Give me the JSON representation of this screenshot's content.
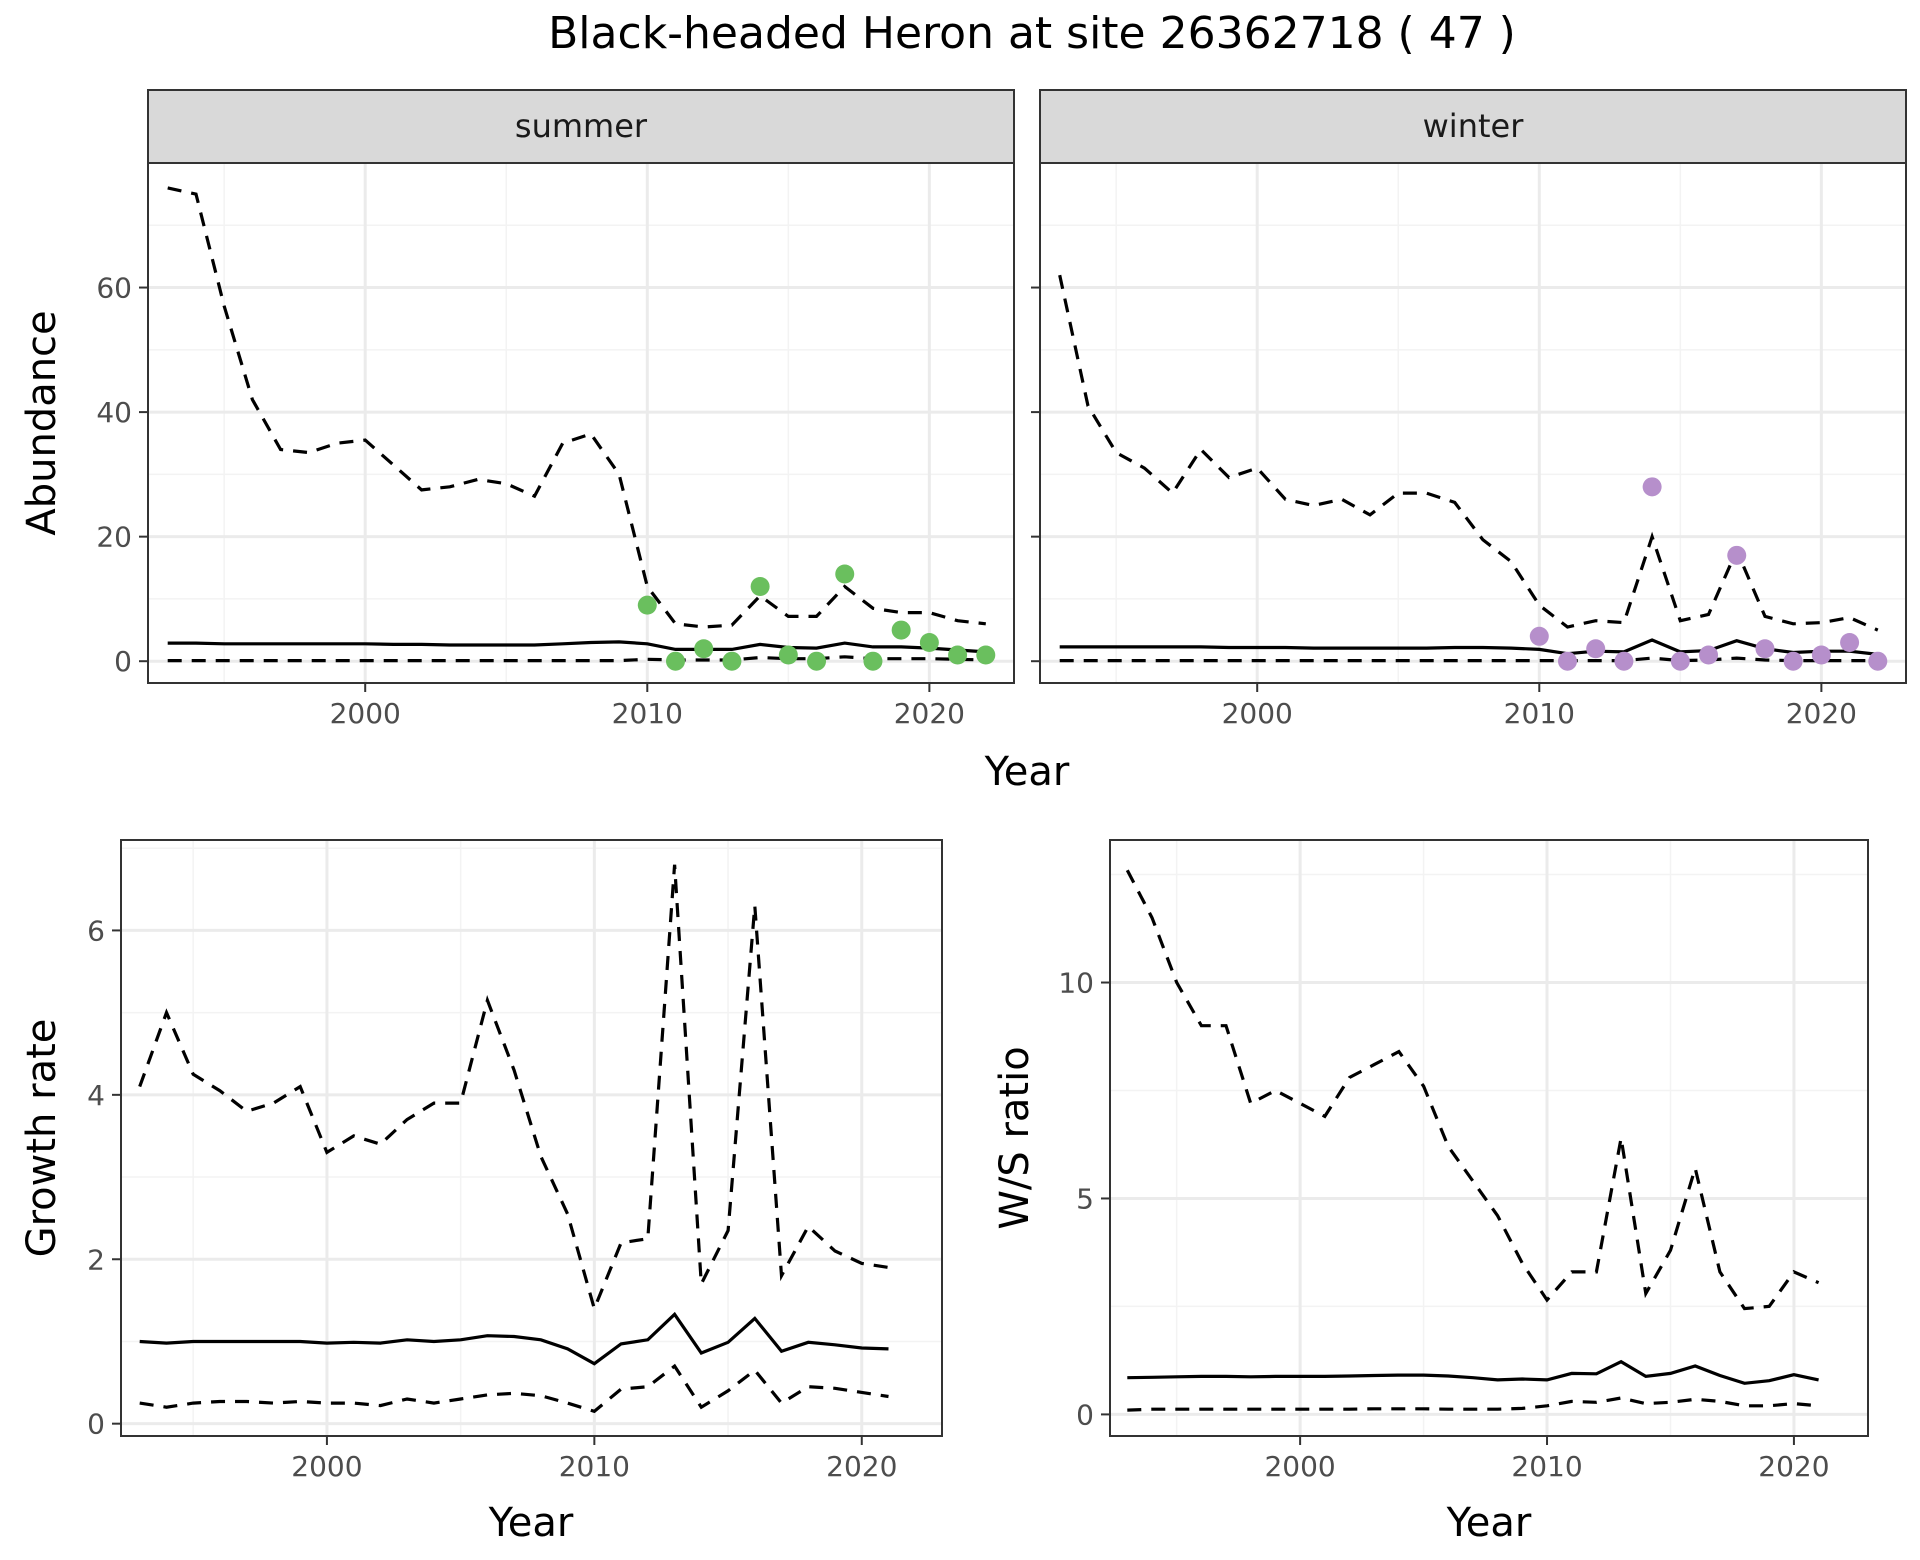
{
  "title": "Black-headed Heron at site 26362718 ( 47 )",
  "chart_data": [
    {
      "id": "abundance",
      "type": "line",
      "ylabel": "Abundance",
      "xlabel": "Year",
      "xlim": [
        1992.3,
        2023.0
      ],
      "ylim": [
        -3.5,
        80
      ],
      "xticks": [
        2000,
        2010,
        2020
      ],
      "yticks": [
        0,
        20,
        40,
        60
      ],
      "grid": true,
      "facets": [
        {
          "label": "summer",
          "point_color": "#6abf5e",
          "x": [
            1993,
            1994,
            1995,
            1996,
            1997,
            1998,
            1999,
            2000,
            2001,
            2002,
            2003,
            2004,
            2005,
            2006,
            2007,
            2008,
            2009,
            2010,
            2011,
            2012,
            2013,
            2014,
            2015,
            2016,
            2017,
            2018,
            2019,
            2020,
            2021,
            2022
          ],
          "estimate": [
            2.9,
            2.9,
            2.8,
            2.8,
            2.8,
            2.8,
            2.8,
            2.8,
            2.7,
            2.7,
            2.6,
            2.6,
            2.6,
            2.6,
            2.8,
            3.0,
            3.1,
            2.8,
            1.9,
            1.9,
            1.9,
            2.7,
            2.2,
            2.1,
            2.9,
            2.3,
            2.3,
            2.1,
            1.8,
            1.5
          ],
          "upper": [
            76,
            75,
            57,
            42,
            34,
            33.5,
            35,
            35.5,
            31.5,
            27.5,
            28,
            29.2,
            28.5,
            26.5,
            35,
            36.5,
            30,
            12,
            6,
            5.5,
            5.8,
            10.5,
            7.2,
            7.2,
            12,
            8.5,
            7.8,
            7.8,
            6.5,
            6
          ],
          "lower": [
            0.1,
            0.1,
            0.1,
            0.1,
            0.1,
            0.1,
            0.1,
            0.1,
            0.1,
            0.1,
            0.1,
            0.1,
            0.1,
            0.1,
            0.1,
            0.1,
            0.1,
            0.3,
            0.2,
            0.2,
            0.2,
            0.6,
            0.4,
            0.4,
            0.7,
            0.4,
            0.4,
            0.4,
            0.3,
            0.2
          ],
          "points_x": [
            2010,
            2011,
            2012,
            2013,
            2014,
            2015,
            2016,
            2017,
            2018,
            2019,
            2020,
            2021,
            2022
          ],
          "points_y": [
            9,
            0,
            2,
            0,
            12,
            1,
            0,
            14,
            0,
            5,
            3,
            1,
            1
          ]
        },
        {
          "label": "winter",
          "point_color": "#b68fcb",
          "x": [
            1993,
            1994,
            1995,
            1996,
            1997,
            1998,
            1999,
            2000,
            2001,
            2002,
            2003,
            2004,
            2005,
            2006,
            2007,
            2008,
            2009,
            2010,
            2011,
            2012,
            2013,
            2014,
            2015,
            2016,
            2017,
            2018,
            2019,
            2020,
            2021,
            2022
          ],
          "estimate": [
            2.3,
            2.3,
            2.3,
            2.3,
            2.3,
            2.3,
            2.2,
            2.2,
            2.2,
            2.1,
            2.1,
            2.1,
            2.1,
            2.1,
            2.2,
            2.2,
            2.1,
            1.9,
            1.2,
            1.6,
            1.5,
            3.4,
            1.5,
            1.7,
            3.3,
            2.0,
            1.4,
            1.6,
            1.6,
            1.1
          ],
          "upper": [
            62,
            41,
            33.5,
            31,
            27,
            34,
            29.5,
            31,
            26,
            25,
            26,
            23.5,
            27,
            27,
            25.5,
            19.5,
            16,
            9,
            5.5,
            6.5,
            6.2,
            20,
            6.5,
            7.5,
            17.8,
            7.2,
            6,
            6.2,
            7,
            5
          ],
          "lower": [
            0.1,
            0.1,
            0.1,
            0.1,
            0.1,
            0.1,
            0.1,
            0.1,
            0.1,
            0.1,
            0.1,
            0.1,
            0.1,
            0.1,
            0.1,
            0.1,
            0.1,
            0.1,
            0.1,
            0.1,
            0.1,
            0.5,
            0.1,
            0.2,
            0.5,
            0.2,
            0.1,
            0.1,
            0.1,
            0.1
          ],
          "points_x": [
            2010,
            2011,
            2012,
            2013,
            2014,
            2015,
            2016,
            2017,
            2018,
            2019,
            2020,
            2021,
            2022
          ],
          "points_y": [
            4,
            0,
            2,
            0,
            28,
            0,
            1,
            17,
            2,
            0,
            1,
            3,
            0
          ]
        }
      ]
    },
    {
      "id": "growth",
      "type": "line",
      "ylabel": "Growth rate",
      "xlabel": "Year",
      "xlim": [
        1992.3,
        2023.0
      ],
      "ylim": [
        -0.15,
        7.1
      ],
      "xticks": [
        2000,
        2010,
        2020
      ],
      "yticks": [
        0,
        2,
        4,
        6
      ],
      "grid": true,
      "x": [
        1993,
        1994,
        1995,
        1996,
        1997,
        1998,
        1999,
        2000,
        2001,
        2002,
        2003,
        2004,
        2005,
        2006,
        2007,
        2008,
        2009,
        2010,
        2011,
        2012,
        2013,
        2014,
        2015,
        2016,
        2017,
        2018,
        2019,
        2020,
        2021
      ],
      "estimate": [
        1.0,
        0.98,
        1.0,
        1.0,
        1.0,
        1.0,
        1.0,
        0.98,
        0.99,
        0.98,
        1.02,
        1.0,
        1.02,
        1.07,
        1.06,
        1.02,
        0.91,
        0.73,
        0.97,
        1.02,
        1.33,
        0.86,
        0.99,
        1.28,
        0.88,
        0.99,
        0.96,
        0.92,
        0.91
      ],
      "upper": [
        4.1,
        5.0,
        4.25,
        4.05,
        3.8,
        3.9,
        4.1,
        3.3,
        3.5,
        3.4,
        3.7,
        3.9,
        3.9,
        5.15,
        4.3,
        3.25,
        2.55,
        1.4,
        2.2,
        2.25,
        6.8,
        1.7,
        2.35,
        6.3,
        1.8,
        2.4,
        2.1,
        1.95,
        1.9
      ],
      "lower": [
        0.25,
        0.2,
        0.25,
        0.27,
        0.27,
        0.25,
        0.27,
        0.25,
        0.25,
        0.22,
        0.3,
        0.25,
        0.3,
        0.35,
        0.37,
        0.34,
        0.25,
        0.15,
        0.42,
        0.45,
        0.7,
        0.2,
        0.4,
        0.65,
        0.25,
        0.45,
        0.43,
        0.38,
        0.33
      ]
    },
    {
      "id": "ratio",
      "type": "line",
      "ylabel": "W/S ratio",
      "xlabel": "Year",
      "xlim": [
        1992.3,
        2023.0
      ],
      "ylim": [
        -0.5,
        13.3
      ],
      "xticks": [
        2000,
        2010,
        2020
      ],
      "yticks": [
        0,
        5,
        10
      ],
      "grid": true,
      "x": [
        1993,
        1994,
        1995,
        1996,
        1997,
        1998,
        1999,
        2000,
        2001,
        2002,
        2003,
        2004,
        2005,
        2006,
        2007,
        2008,
        2009,
        2010,
        2011,
        2012,
        2013,
        2014,
        2015,
        2016,
        2017,
        2018,
        2019,
        2020,
        2021
      ],
      "estimate": [
        0.85,
        0.86,
        0.87,
        0.88,
        0.88,
        0.87,
        0.88,
        0.88,
        0.88,
        0.89,
        0.9,
        0.91,
        0.91,
        0.89,
        0.85,
        0.8,
        0.82,
        0.8,
        0.95,
        0.94,
        1.22,
        0.88,
        0.95,
        1.12,
        0.9,
        0.72,
        0.78,
        0.92,
        0.8
      ],
      "upper": [
        12.6,
        11.5,
        10.0,
        9.0,
        9.0,
        7.2,
        7.5,
        7.2,
        6.9,
        7.8,
        8.1,
        8.4,
        7.6,
        6.2,
        5.4,
        4.6,
        3.5,
        2.65,
        3.3,
        3.3,
        6.4,
        2.8,
        3.8,
        5.7,
        3.3,
        2.45,
        2.5,
        3.3,
        3.05
      ],
      "lower": [
        0.1,
        0.12,
        0.12,
        0.12,
        0.12,
        0.12,
        0.12,
        0.12,
        0.12,
        0.12,
        0.13,
        0.13,
        0.13,
        0.12,
        0.12,
        0.12,
        0.14,
        0.2,
        0.3,
        0.28,
        0.38,
        0.25,
        0.28,
        0.35,
        0.3,
        0.2,
        0.2,
        0.25,
        0.2
      ]
    }
  ]
}
